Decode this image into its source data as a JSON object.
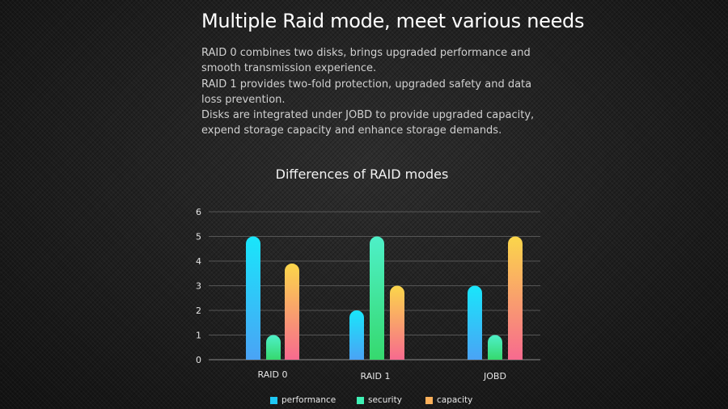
{
  "headline": "Multiple Raid mode, meet various needs",
  "description_lines": [
    "RAID 0 combines two disks, brings upgraded performance and",
    "smooth transmission experience.",
    "RAID 1 provides two-fold protection, upgraded safety and data",
    "loss prevention.",
    "Disks are integrated under JOBD to provide upgraded capacity,",
    "expend storage capacity and enhance storage demands."
  ],
  "chart_data": {
    "type": "bar",
    "title": "Differences of RAID modes",
    "xlabel": "",
    "ylabel": "",
    "categories": [
      "RAID 0",
      "RAID 1",
      "JOBD"
    ],
    "y_ticks": [
      0,
      1,
      2,
      3,
      4,
      5,
      6
    ],
    "ylim": [
      0,
      6
    ],
    "grid": true,
    "legend_position": "bottom",
    "series": [
      {
        "name": "performance",
        "values": [
          5,
          2,
          3
        ],
        "color_top": "#19e6fb",
        "color_bottom": "#4aa3f5"
      },
      {
        "name": "security",
        "values": [
          1,
          5,
          1
        ],
        "color_top": "#4ef0c8",
        "color_bottom": "#36d96e"
      },
      {
        "name": "capacity",
        "values": [
          3.9,
          3,
          5
        ],
        "color_top": "#fbd64a",
        "color_bottom": "#f76a8f"
      }
    ]
  }
}
